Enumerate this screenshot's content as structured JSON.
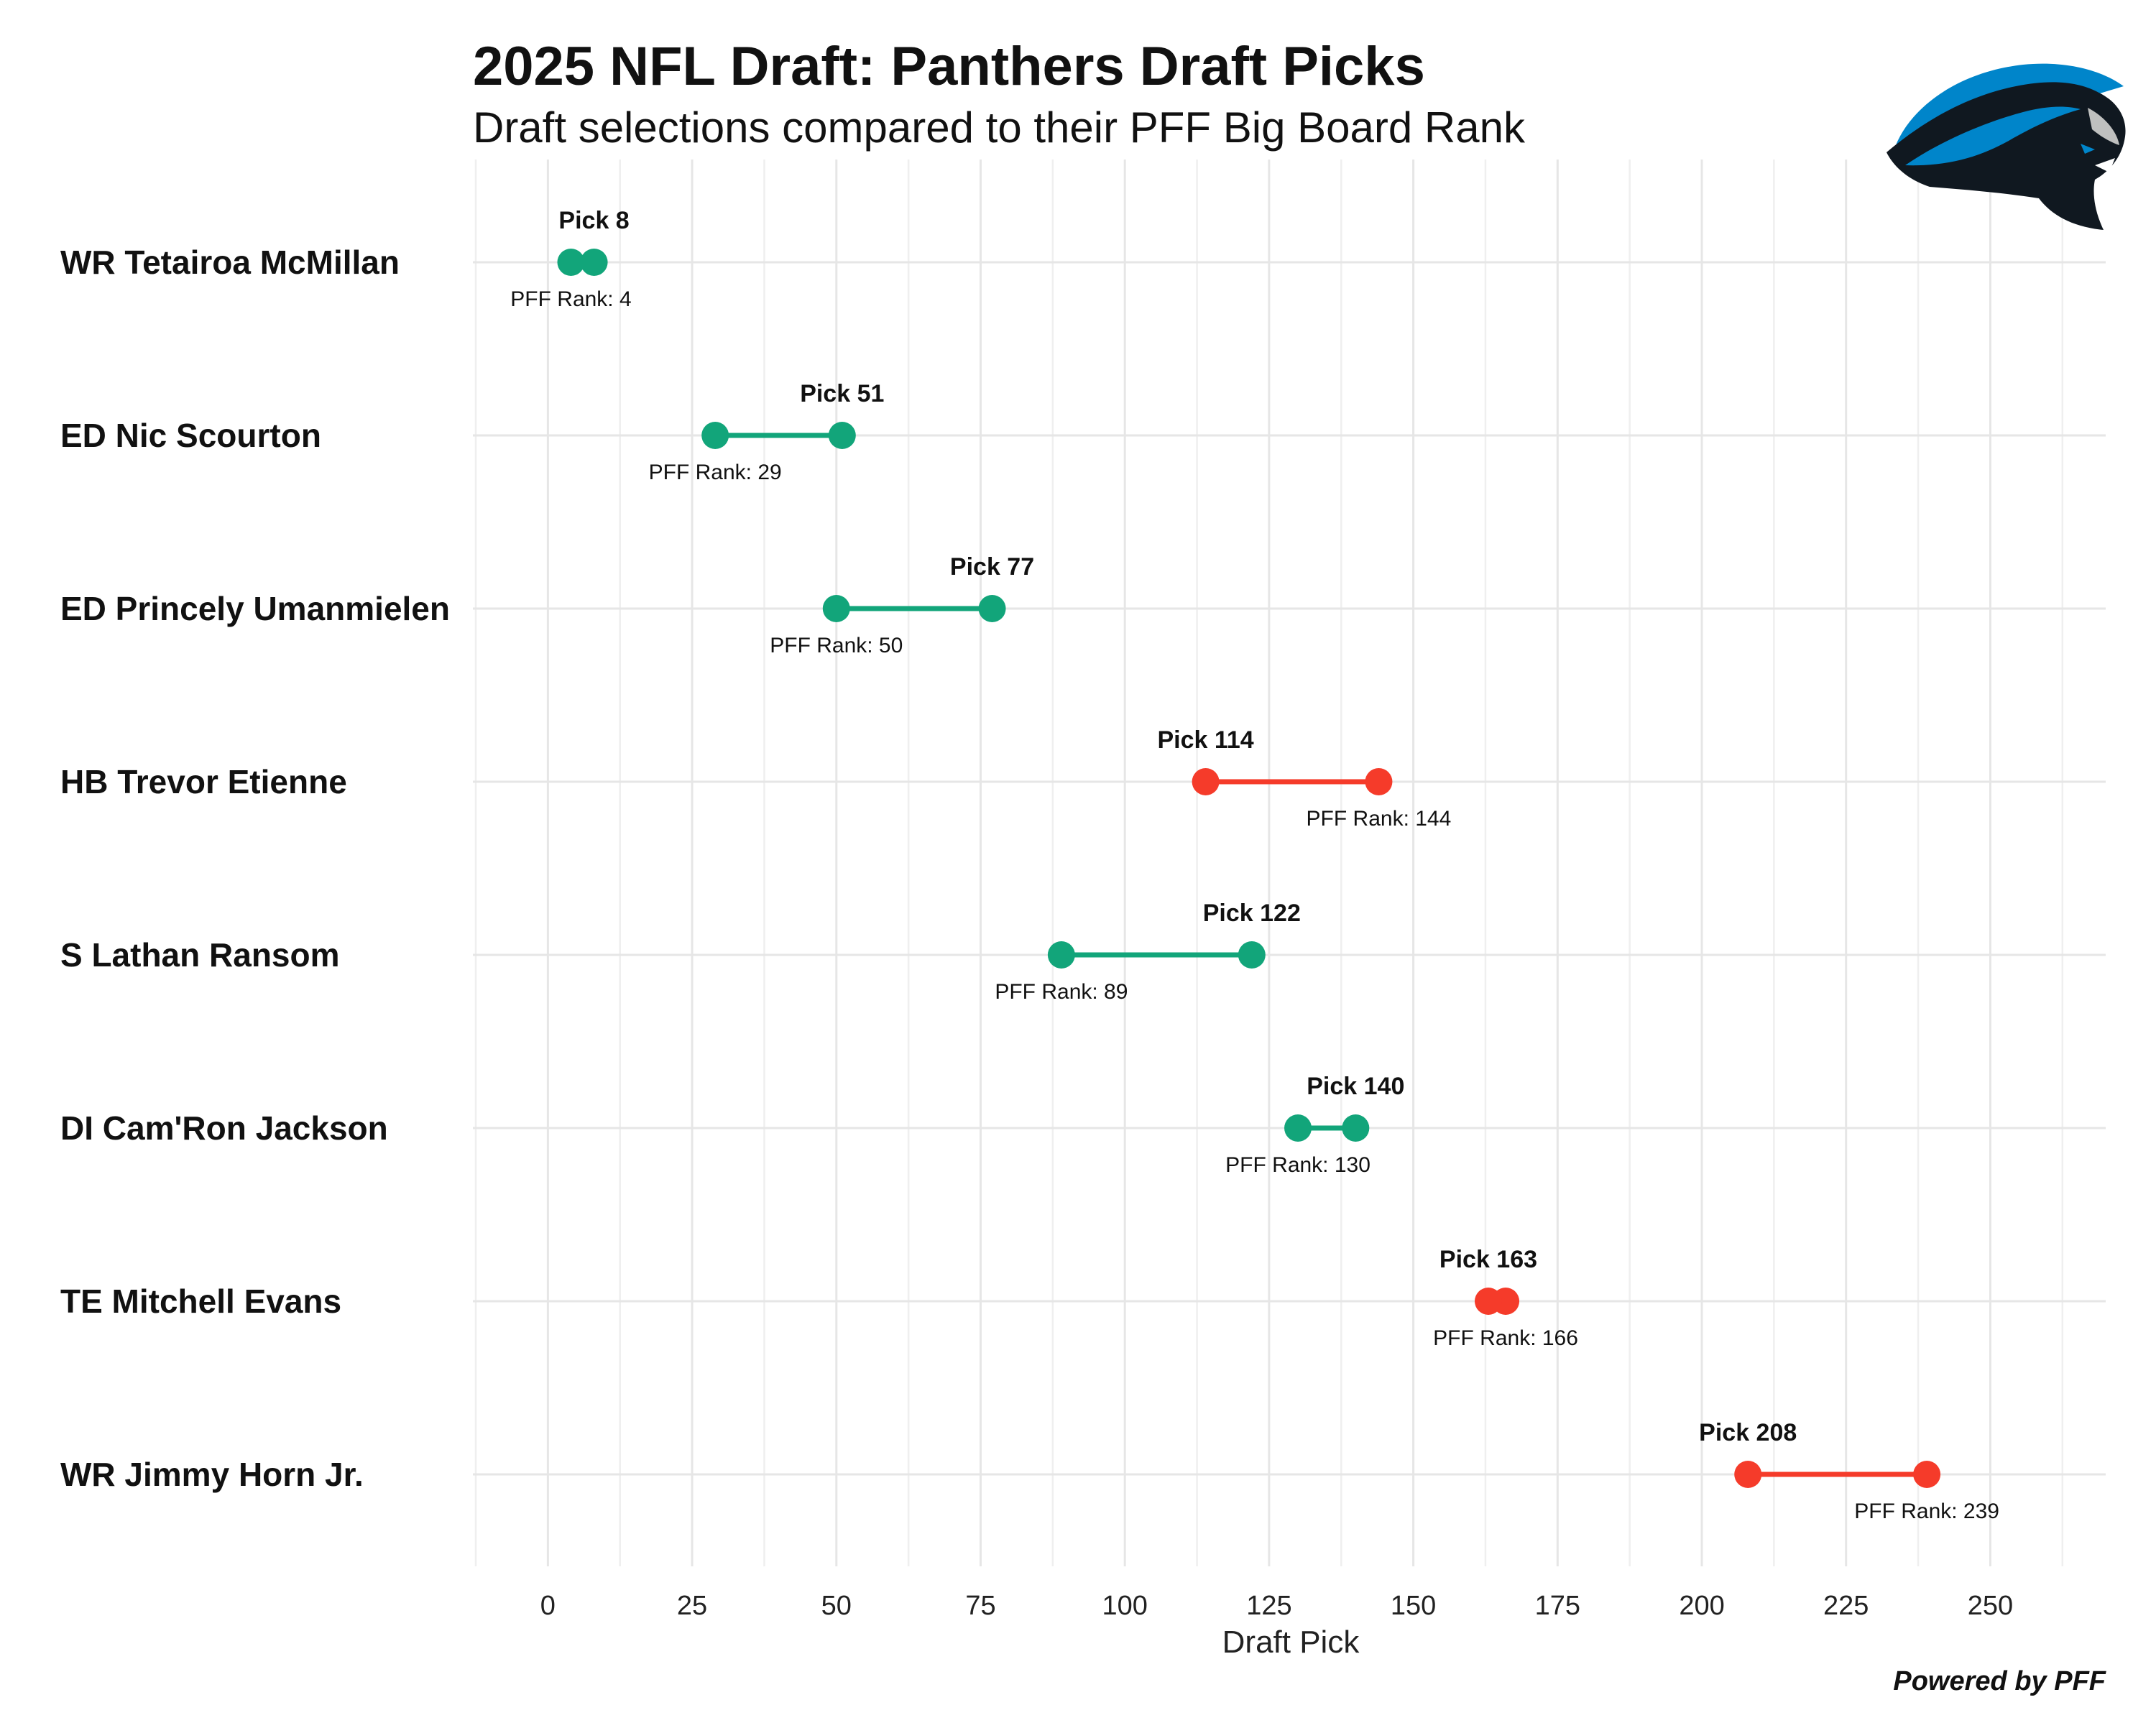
{
  "title": "2025 NFL Draft: Panthers Draft Picks",
  "subtitle": "Draft selections compared to their PFF Big Board Rank",
  "credit": "Powered by PFF",
  "logo_icon": "panthers-logo",
  "colors": {
    "above_value": "#12a57a",
    "below_value": "#f53b2a",
    "logo_blue": "#0085ca",
    "logo_black": "#101820"
  },
  "chart_data": {
    "type": "dumbbell",
    "xlabel": "Draft Pick",
    "xlim": [
      -13,
      270
    ],
    "xticks": [
      0,
      25,
      50,
      75,
      100,
      125,
      150,
      175,
      200,
      225,
      250
    ],
    "xtick_labels": [
      "0",
      "25",
      "50",
      "75",
      "100",
      "125",
      "150",
      "175",
      "200",
      "225",
      "250"
    ],
    "grid": true,
    "players": [
      {
        "name": "WR Tetairoa McMillan",
        "pick": 8,
        "pff_rank": 4,
        "pick_label": "Pick 8",
        "rank_label": "PFF Rank: 4",
        "color": "#12a57a"
      },
      {
        "name": "ED Nic Scourton",
        "pick": 51,
        "pff_rank": 29,
        "pick_label": "Pick 51",
        "rank_label": "PFF Rank: 29",
        "color": "#12a57a"
      },
      {
        "name": "ED Princely Umanmielen",
        "pick": 77,
        "pff_rank": 50,
        "pick_label": "Pick 77",
        "rank_label": "PFF Rank: 50",
        "color": "#12a57a"
      },
      {
        "name": "HB Trevor Etienne",
        "pick": 114,
        "pff_rank": 144,
        "pick_label": "Pick 114",
        "rank_label": "PFF Rank: 144",
        "color": "#f53b2a"
      },
      {
        "name": "S Lathan Ransom",
        "pick": 122,
        "pff_rank": 89,
        "pick_label": "Pick 122",
        "rank_label": "PFF Rank: 89",
        "color": "#12a57a"
      },
      {
        "name": "DI Cam'Ron Jackson",
        "pick": 140,
        "pff_rank": 130,
        "pick_label": "Pick 140",
        "rank_label": "PFF Rank: 130",
        "color": "#12a57a"
      },
      {
        "name": "TE Mitchell Evans",
        "pick": 163,
        "pff_rank": 166,
        "pick_label": "Pick 163",
        "rank_label": "PFF Rank: 166",
        "color": "#f53b2a"
      },
      {
        "name": "WR Jimmy Horn Jr.",
        "pick": 208,
        "pff_rank": 239,
        "pick_label": "Pick 208",
        "rank_label": "PFF Rank: 239",
        "color": "#f53b2a"
      }
    ]
  }
}
